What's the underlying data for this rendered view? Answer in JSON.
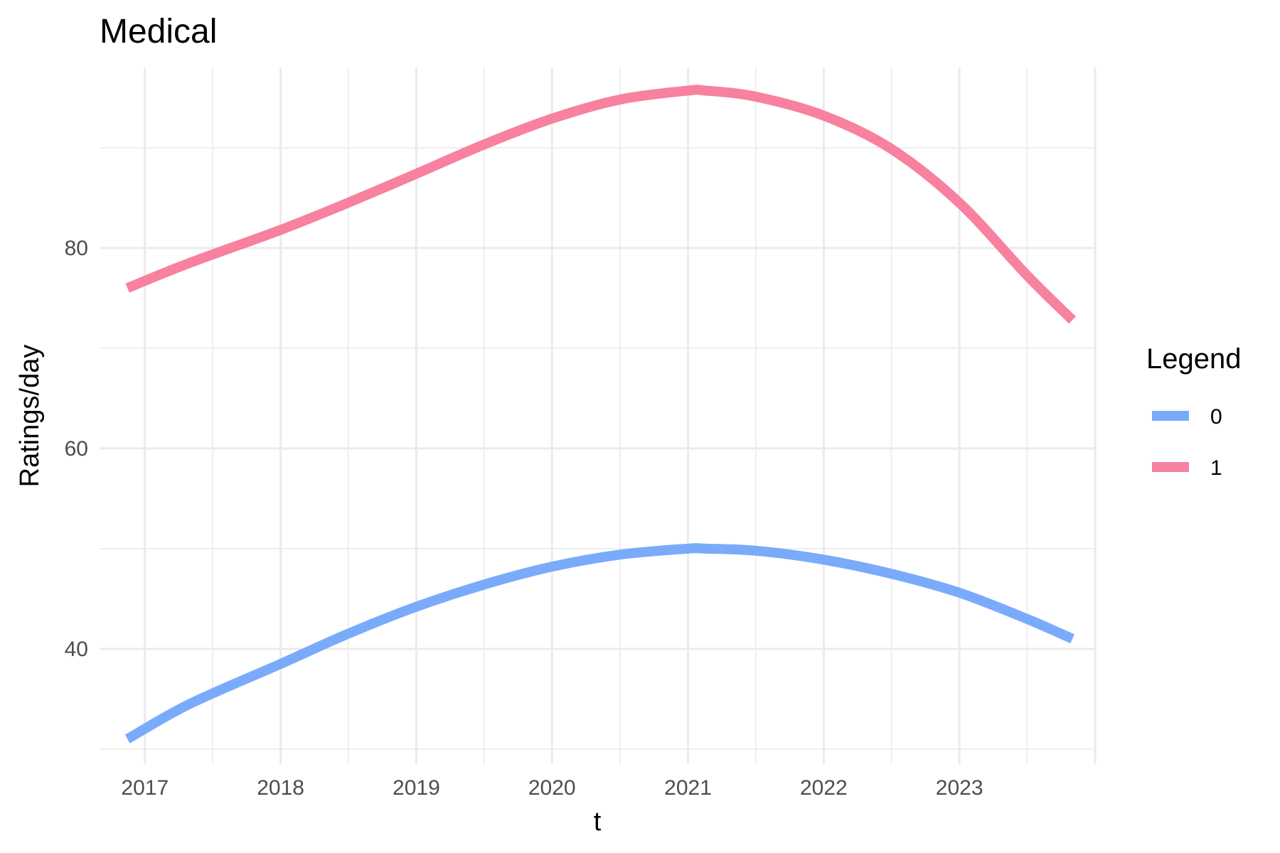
{
  "chart_data": {
    "type": "line",
    "title": "Medical",
    "xlabel": "t",
    "ylabel": "Ratings/day",
    "x_ticks": [
      "2017",
      "2018",
      "2019",
      "2020",
      "2021",
      "2022",
      "2023"
    ],
    "y_ticks": [
      "40",
      "60",
      "80"
    ],
    "xlim": [
      "2016-09-01",
      "2024-01-01"
    ],
    "ylim": [
      28.5,
      98
    ],
    "grid": true,
    "legend": {
      "title": "Legend",
      "position": "right"
    },
    "series": [
      {
        "name": "0",
        "color": "#7aabfb",
        "x": [
          "2016-11-15",
          "2017-05-01",
          "2018-01-01",
          "2018-07-01",
          "2019-01-01",
          "2019-07-01",
          "2020-01-01",
          "2020-07-01",
          "2021-01-01",
          "2021-02-15",
          "2021-07-01",
          "2022-01-01",
          "2022-07-01",
          "2023-01-01",
          "2023-07-01",
          "2023-11-01"
        ],
        "values": [
          31,
          34.5,
          38.5,
          41.5,
          44.2,
          46.4,
          48.2,
          49.4,
          50.0,
          50.0,
          49.8,
          48.9,
          47.5,
          45.6,
          43.0,
          41.0
        ]
      },
      {
        "name": "1",
        "color": "#f7819e",
        "x": [
          "2016-11-15",
          "2017-05-01",
          "2018-01-01",
          "2018-07-01",
          "2019-01-01",
          "2019-07-01",
          "2020-01-01",
          "2020-07-01",
          "2021-01-01",
          "2021-02-15",
          "2021-07-01",
          "2022-01-01",
          "2022-07-01",
          "2023-01-01",
          "2023-07-01",
          "2023-11-01"
        ],
        "values": [
          76,
          78.5,
          81.8,
          84.5,
          87.4,
          90.3,
          92.9,
          94.8,
          95.7,
          95.7,
          95.1,
          93.2,
          89.9,
          84.5,
          77.3,
          72.8
        ]
      }
    ]
  }
}
